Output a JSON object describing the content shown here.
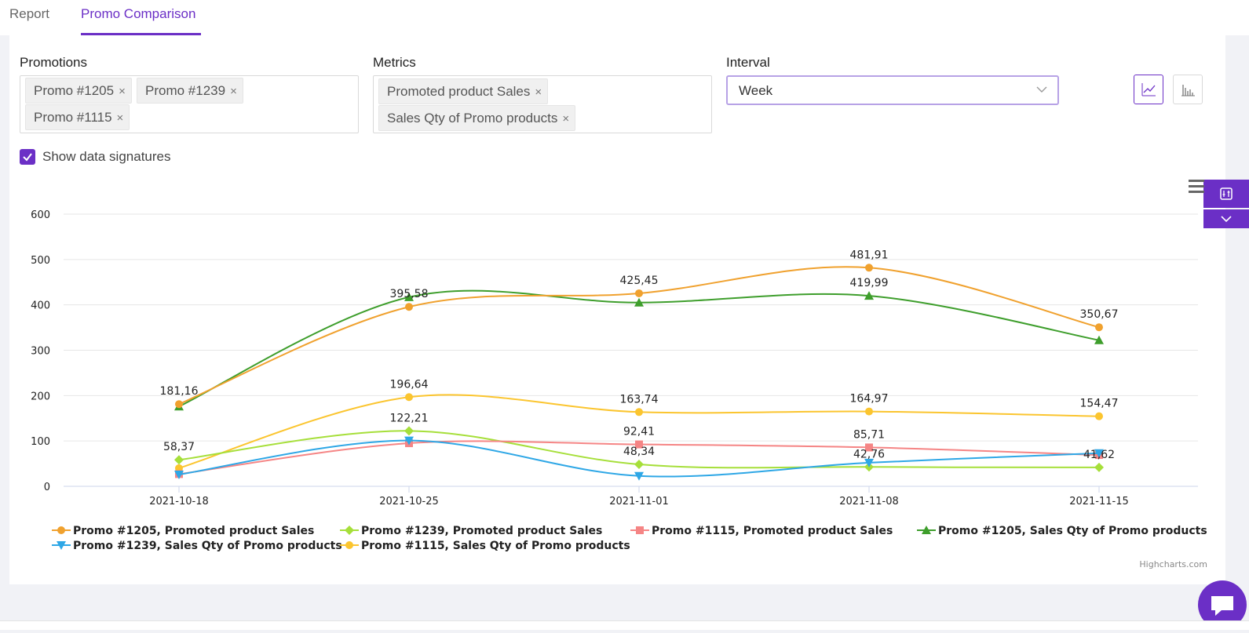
{
  "tabs": [
    {
      "label": "Report",
      "active": false
    },
    {
      "label": "Promo Comparison",
      "active": true
    }
  ],
  "filters": {
    "promotions": {
      "label": "Promotions",
      "tags": [
        "Promo #1205",
        "Promo #1239",
        "Promo #1115"
      ]
    },
    "metrics": {
      "label": "Metrics",
      "tags": [
        "Promoted product Sales",
        "Sales Qty of Promo products"
      ]
    },
    "interval": {
      "label": "Interval",
      "value": "Week"
    },
    "remove_icon": "×"
  },
  "chart_type_buttons": [
    "line-chart-icon",
    "bar-chart-icon"
  ],
  "show_data_signatures": {
    "label": "Show data signatures",
    "checked": true
  },
  "side_buttons": [
    "settings-sliders-icon",
    "chevron-down-icon"
  ],
  "chat_button": "chat-icon",
  "chart_data": {
    "type": "line",
    "categories": [
      "2021-10-18",
      "2021-10-25",
      "2021-11-01",
      "2021-11-08",
      "2021-11-15"
    ],
    "ylim": [
      0,
      600
    ],
    "yticks": [
      0,
      100,
      200,
      300,
      400,
      500,
      600
    ],
    "grid": true,
    "legend_position": "bottom",
    "series": [
      {
        "name": "Promo #1205, Promoted product Sales",
        "color": "#f0a12e",
        "marker": "circle",
        "values": [
          181.16,
          395.58,
          425.45,
          481.91,
          350.67
        ],
        "labels": [
          "181,16",
          "395,58",
          "425,45",
          "481,91",
          "350,67"
        ]
      },
      {
        "name": "Promo #1239, Promoted product Sales",
        "color": "#a6df3a",
        "marker": "diamond",
        "values": [
          58.37,
          122.21,
          48.34,
          42.76,
          41.62
        ],
        "labels": [
          "58,37",
          "122,21",
          "48,34",
          "42,76",
          "41,62"
        ]
      },
      {
        "name": "Promo #1115, Promoted product Sales",
        "color": "#f58585",
        "marker": "square",
        "values": [
          27,
          95,
          92.41,
          85.71,
          69
        ],
        "labels": [
          "",
          "",
          "92,41",
          "85,71",
          ""
        ]
      },
      {
        "name": "Promo #1205, Sales Qty of Promo products",
        "color": "#3e9e2c",
        "marker": "triangle",
        "values": [
          176,
          417,
          405,
          419.99,
          322
        ],
        "labels": [
          "",
          "",
          "",
          "419,99",
          ""
        ]
      },
      {
        "name": "Promo #1239, Sales Qty of Promo products",
        "color": "#2ea7e6",
        "marker": "triangle-down",
        "values": [
          26,
          101,
          23,
          52,
          73
        ],
        "labels": [
          "",
          "",
          "",
          "",
          ""
        ]
      },
      {
        "name": "Promo #1115, Sales Qty of Promo products",
        "color": "#fbc52f",
        "marker": "circle",
        "values": [
          40,
          196.64,
          163.74,
          164.97,
          154.47
        ],
        "labels": [
          "",
          "196,64",
          "163,74",
          "164,97",
          "154,47"
        ]
      }
    ],
    "menu_icon": "hamburger-menu-icon",
    "credit": "Highcharts.com"
  }
}
